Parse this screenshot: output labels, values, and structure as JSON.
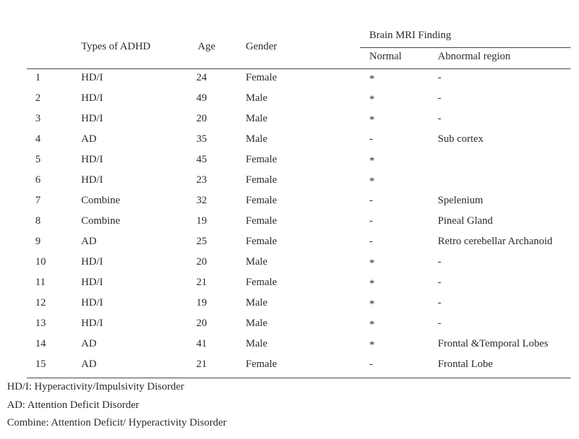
{
  "table": {
    "header": {
      "index": null,
      "type": "Types of ADHD",
      "age": "Age",
      "gender": "Gender",
      "group": "Brain MRI Finding",
      "normal": "Normal",
      "abnormal": "Abnormal region"
    },
    "rows": [
      [
        "1",
        "HD/I",
        "24",
        "Female",
        "*",
        "-"
      ],
      [
        "2",
        "HD/I",
        "49",
        "Male",
        "*",
        "-"
      ],
      [
        "3",
        "HD/I",
        "20",
        "Male",
        "*",
        "-"
      ],
      [
        "4",
        "AD",
        "35",
        "Male",
        "-",
        "Sub cortex"
      ],
      [
        "5",
        "HD/I",
        "45",
        "Female",
        "*",
        null
      ],
      [
        "6",
        "HD/I",
        "23",
        "Female",
        "*",
        null
      ],
      [
        "7",
        "Combine",
        "32",
        "Female",
        "-",
        "Spelenium"
      ],
      [
        "8",
        "Combine",
        "19",
        "Female",
        "-",
        "Pineal Gland"
      ],
      [
        "9",
        "AD",
        "25",
        "Female",
        "-",
        "Retro cerebellar Archanoid"
      ],
      [
        "10",
        "HD/I",
        "20",
        "Male",
        "*",
        "-"
      ],
      [
        "11",
        "HD/I",
        "21",
        "Female",
        "*",
        "-"
      ],
      [
        "12",
        "HD/I",
        "19",
        "Male",
        "*",
        "-"
      ],
      [
        "13",
        "HD/I",
        "20",
        "Male",
        "*",
        "-"
      ],
      [
        "14",
        "AD",
        "41",
        "Male",
        "*",
        "Frontal &Temporal Lobes"
      ],
      [
        "15",
        "AD",
        "21",
        "Female",
        "-",
        "Frontal Lobe"
      ]
    ]
  },
  "footnotes": [
    "HD/I: Hyperactivity/Impulsivity Disorder",
    "AD: Attention Deficit Disorder",
    "Combine: Attention Deficit/ Hyperactivity Disorder"
  ]
}
